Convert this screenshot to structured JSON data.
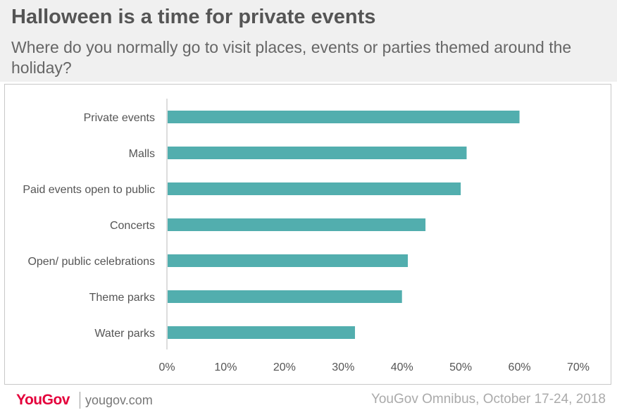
{
  "header": {
    "title": "Halloween is a time for private events",
    "subtitle": "Where do you normally go to visit places, events or parties themed around the holiday?"
  },
  "footer": {
    "logo": "YouGov",
    "site": "yougov.com",
    "source": "YouGov Omnibus, October 17-24, 2018"
  },
  "colors": {
    "bar": "#52aeae",
    "axis": "#bbbbbb",
    "label": "#555555"
  },
  "chart_data": {
    "type": "bar",
    "orientation": "horizontal",
    "categories": [
      "Private events",
      "Malls",
      "Paid events open to public",
      "Concerts",
      "Open/ public celebrations",
      "Theme parks",
      "Water parks"
    ],
    "values": [
      60,
      51,
      50,
      44,
      41,
      40,
      32
    ],
    "xlim": [
      0,
      70
    ],
    "xticks": [
      "0%",
      "10%",
      "20%",
      "30%",
      "40%",
      "50%",
      "60%",
      "70%"
    ],
    "grid": false,
    "legend": "none"
  }
}
